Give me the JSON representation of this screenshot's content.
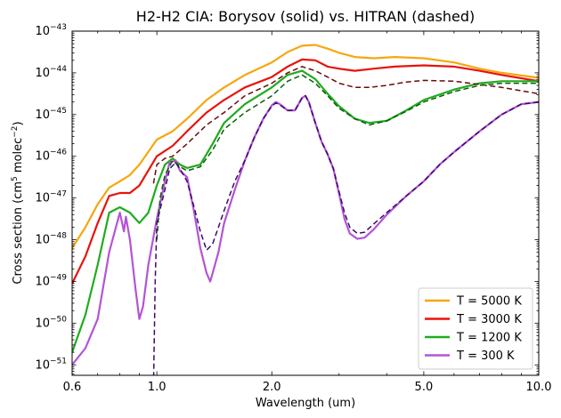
{
  "chart_data": {
    "type": "line",
    "title": "H2-H2 CIA:  Borysov (solid) vs. HITRAN (dashed)",
    "xlabel": "Wavelength (um)",
    "ylabel_main": "Cross section (cm",
    "ylabel_sup1": "5",
    "ylabel_mid": " molec",
    "ylabel_sup2": "−2",
    "ylabel_end": ")",
    "x_scale": "log",
    "y_scale": "log",
    "xlim": [
      0.6,
      10.0
    ],
    "ylim_exp": [
      -51.25,
      -43
    ],
    "x_ticks": [
      {
        "value": 0.6,
        "label": "0.6"
      },
      {
        "value": 1.0,
        "label": "1.0"
      },
      {
        "value": 2.0,
        "label": "2.0"
      },
      {
        "value": 5.0,
        "label": "5.0"
      },
      {
        "value": 10.0,
        "label": "10.0"
      }
    ],
    "y_ticks": [
      {
        "exp": -43,
        "base": "10",
        "sup": "−43"
      },
      {
        "exp": -44,
        "base": "10",
        "sup": "−44"
      },
      {
        "exp": -45,
        "base": "10",
        "sup": "−45"
      },
      {
        "exp": -46,
        "base": "10",
        "sup": "−46"
      },
      {
        "exp": -47,
        "base": "10",
        "sup": "−47"
      },
      {
        "exp": -48,
        "base": "10",
        "sup": "−48"
      },
      {
        "exp": -49,
        "base": "10",
        "sup": "−49"
      },
      {
        "exp": -50,
        "base": "10",
        "sup": "−50"
      },
      {
        "exp": -51,
        "base": "10",
        "sup": "−51"
      }
    ],
    "legend_position": "lower-right",
    "series": [
      {
        "name": "T = 5000 K",
        "color": "#f5a70f",
        "style": "solid",
        "legend": true,
        "points": [
          [
            0.6,
            -48.2
          ],
          [
            0.65,
            -47.7
          ],
          [
            0.7,
            -47.15
          ],
          [
            0.75,
            -46.75
          ],
          [
            0.8,
            -46.6
          ],
          [
            0.85,
            -46.45
          ],
          [
            0.9,
            -46.2
          ],
          [
            1.0,
            -45.6
          ],
          [
            1.1,
            -45.4
          ],
          [
            1.2,
            -45.1
          ],
          [
            1.35,
            -44.65
          ],
          [
            1.5,
            -44.35
          ],
          [
            1.7,
            -44.05
          ],
          [
            2.0,
            -43.75
          ],
          [
            2.2,
            -43.5
          ],
          [
            2.4,
            -43.35
          ],
          [
            2.6,
            -43.33
          ],
          [
            2.8,
            -43.42
          ],
          [
            3.0,
            -43.52
          ],
          [
            3.3,
            -43.62
          ],
          [
            3.7,
            -43.65
          ],
          [
            4.2,
            -43.62
          ],
          [
            5.0,
            -43.65
          ],
          [
            6.0,
            -43.75
          ],
          [
            7.0,
            -43.9
          ],
          [
            8.0,
            -44.0
          ],
          [
            10.0,
            -44.12
          ]
        ]
      },
      {
        "name": "T = 3000 K",
        "color": "#e8120c",
        "style": "solid",
        "legend": true,
        "points": [
          [
            0.6,
            -49.05
          ],
          [
            0.65,
            -48.4
          ],
          [
            0.7,
            -47.6
          ],
          [
            0.75,
            -46.95
          ],
          [
            0.8,
            -46.88
          ],
          [
            0.85,
            -46.88
          ],
          [
            0.9,
            -46.7
          ],
          [
            1.0,
            -46.0
          ],
          [
            1.1,
            -45.75
          ],
          [
            1.2,
            -45.4
          ],
          [
            1.35,
            -44.95
          ],
          [
            1.5,
            -44.65
          ],
          [
            1.7,
            -44.35
          ],
          [
            2.0,
            -44.1
          ],
          [
            2.2,
            -43.85
          ],
          [
            2.4,
            -43.68
          ],
          [
            2.6,
            -43.7
          ],
          [
            2.8,
            -43.85
          ],
          [
            3.0,
            -43.9
          ],
          [
            3.3,
            -43.95
          ],
          [
            3.7,
            -43.9
          ],
          [
            4.2,
            -43.85
          ],
          [
            5.0,
            -43.82
          ],
          [
            6.0,
            -43.85
          ],
          [
            7.0,
            -43.95
          ],
          [
            8.0,
            -44.05
          ],
          [
            10.0,
            -44.2
          ]
        ]
      },
      {
        "name": "T = 1200 K",
        "color": "#1eac1e",
        "style": "solid",
        "legend": true,
        "points": [
          [
            0.6,
            -50.7
          ],
          [
            0.65,
            -49.8
          ],
          [
            0.7,
            -48.6
          ],
          [
            0.75,
            -47.35
          ],
          [
            0.8,
            -47.22
          ],
          [
            0.85,
            -47.35
          ],
          [
            0.9,
            -47.6
          ],
          [
            0.95,
            -47.35
          ],
          [
            1.0,
            -46.7
          ],
          [
            1.05,
            -46.2
          ],
          [
            1.1,
            -46.05
          ],
          [
            1.15,
            -46.2
          ],
          [
            1.2,
            -46.28
          ],
          [
            1.3,
            -46.2
          ],
          [
            1.4,
            -45.7
          ],
          [
            1.5,
            -45.2
          ],
          [
            1.7,
            -44.75
          ],
          [
            2.0,
            -44.35
          ],
          [
            2.2,
            -44.05
          ],
          [
            2.4,
            -43.95
          ],
          [
            2.6,
            -44.15
          ],
          [
            2.8,
            -44.5
          ],
          [
            3.0,
            -44.8
          ],
          [
            3.3,
            -45.1
          ],
          [
            3.6,
            -45.2
          ],
          [
            4.0,
            -45.15
          ],
          [
            4.5,
            -44.9
          ],
          [
            5.0,
            -44.65
          ],
          [
            6.0,
            -44.4
          ],
          [
            7.0,
            -44.25
          ],
          [
            8.0,
            -44.2
          ],
          [
            10.0,
            -44.2
          ]
        ]
      },
      {
        "name": "T =  300 K",
        "color": "#b354d6",
        "style": "solid",
        "legend": true,
        "points": [
          [
            0.6,
            -51.0
          ],
          [
            0.65,
            -50.6
          ],
          [
            0.7,
            -49.9
          ],
          [
            0.75,
            -48.3
          ],
          [
            0.8,
            -47.35
          ],
          [
            0.82,
            -47.8
          ],
          [
            0.83,
            -47.45
          ],
          [
            0.85,
            -48.0
          ],
          [
            0.88,
            -49.2
          ],
          [
            0.9,
            -49.9
          ],
          [
            0.92,
            -49.6
          ],
          [
            0.95,
            -48.6
          ],
          [
            1.0,
            -47.5
          ],
          [
            1.05,
            -46.6
          ],
          [
            1.08,
            -46.15
          ],
          [
            1.12,
            -46.1
          ],
          [
            1.15,
            -46.35
          ],
          [
            1.2,
            -46.5
          ],
          [
            1.25,
            -47.3
          ],
          [
            1.3,
            -48.2
          ],
          [
            1.35,
            -48.8
          ],
          [
            1.38,
            -49.0
          ],
          [
            1.4,
            -48.8
          ],
          [
            1.45,
            -48.3
          ],
          [
            1.5,
            -47.6
          ],
          [
            1.6,
            -46.8
          ],
          [
            1.7,
            -46.1
          ],
          [
            1.8,
            -45.55
          ],
          [
            1.9,
            -45.1
          ],
          [
            2.0,
            -44.78
          ],
          [
            2.05,
            -44.7
          ],
          [
            2.1,
            -44.75
          ],
          [
            2.2,
            -44.9
          ],
          [
            2.3,
            -44.9
          ],
          [
            2.4,
            -44.6
          ],
          [
            2.45,
            -44.55
          ],
          [
            2.5,
            -44.7
          ],
          [
            2.6,
            -45.2
          ],
          [
            2.7,
            -45.65
          ],
          [
            2.8,
            -45.95
          ],
          [
            2.9,
            -46.3
          ],
          [
            3.0,
            -46.9
          ],
          [
            3.1,
            -47.5
          ],
          [
            3.2,
            -47.85
          ],
          [
            3.35,
            -47.98
          ],
          [
            3.5,
            -47.95
          ],
          [
            3.7,
            -47.75
          ],
          [
            4.0,
            -47.4
          ],
          [
            4.5,
            -46.95
          ],
          [
            5.0,
            -46.6
          ],
          [
            5.5,
            -46.2
          ],
          [
            6.0,
            -45.9
          ],
          [
            7.0,
            -45.4
          ],
          [
            8.0,
            -45.0
          ],
          [
            9.0,
            -44.75
          ],
          [
            10.0,
            -44.7
          ]
        ]
      },
      {
        "color": "#6b0a0a",
        "style": "dashed",
        "legend": false,
        "points": [
          [
            0.98,
            -46.65
          ],
          [
            1.0,
            -46.2
          ],
          [
            1.05,
            -46.05
          ],
          [
            1.1,
            -46.0
          ],
          [
            1.2,
            -45.7
          ],
          [
            1.35,
            -45.25
          ],
          [
            1.5,
            -44.95
          ],
          [
            1.7,
            -44.55
          ],
          [
            2.0,
            -44.25
          ],
          [
            2.2,
            -44.0
          ],
          [
            2.4,
            -43.85
          ],
          [
            2.6,
            -43.95
          ],
          [
            2.8,
            -44.1
          ],
          [
            3.0,
            -44.25
          ],
          [
            3.3,
            -44.35
          ],
          [
            3.6,
            -44.35
          ],
          [
            4.0,
            -44.3
          ],
          [
            4.5,
            -44.22
          ],
          [
            5.0,
            -44.18
          ],
          [
            6.0,
            -44.2
          ],
          [
            7.0,
            -44.28
          ],
          [
            8.0,
            -44.35
          ],
          [
            10.0,
            -44.5
          ]
        ]
      },
      {
        "color": "#0c5c0c",
        "style": "dashed",
        "legend": false,
        "points": [
          [
            1.0,
            -48.0
          ],
          [
            1.02,
            -47.0
          ],
          [
            1.05,
            -46.45
          ],
          [
            1.1,
            -46.1
          ],
          [
            1.15,
            -46.25
          ],
          [
            1.2,
            -46.35
          ],
          [
            1.3,
            -46.25
          ],
          [
            1.4,
            -45.85
          ],
          [
            1.5,
            -45.35
          ],
          [
            1.7,
            -44.95
          ],
          [
            2.0,
            -44.55
          ],
          [
            2.2,
            -44.2
          ],
          [
            2.4,
            -44.05
          ],
          [
            2.6,
            -44.25
          ],
          [
            2.8,
            -44.55
          ],
          [
            3.0,
            -44.85
          ],
          [
            3.3,
            -45.1
          ],
          [
            3.6,
            -45.25
          ],
          [
            4.0,
            -45.15
          ],
          [
            4.5,
            -44.92
          ],
          [
            5.0,
            -44.7
          ],
          [
            6.0,
            -44.45
          ],
          [
            7.0,
            -44.3
          ],
          [
            8.0,
            -44.25
          ],
          [
            10.0,
            -44.25
          ]
        ]
      },
      {
        "color": "#3d0b66",
        "style": "dashed",
        "legend": false,
        "points": [
          [
            0.98,
            -51.5
          ],
          [
            0.99,
            -49.0
          ],
          [
            1.0,
            -47.6
          ],
          [
            1.05,
            -46.8
          ],
          [
            1.08,
            -46.3
          ],
          [
            1.12,
            -46.15
          ],
          [
            1.15,
            -46.3
          ],
          [
            1.2,
            -46.6
          ],
          [
            1.25,
            -47.2
          ],
          [
            1.3,
            -47.8
          ],
          [
            1.35,
            -48.25
          ],
          [
            1.4,
            -48.1
          ],
          [
            1.45,
            -47.7
          ],
          [
            1.5,
            -47.3
          ],
          [
            1.6,
            -46.6
          ],
          [
            1.7,
            -46.1
          ],
          [
            1.8,
            -45.55
          ],
          [
            1.9,
            -45.1
          ],
          [
            2.0,
            -44.8
          ],
          [
            2.05,
            -44.72
          ],
          [
            2.1,
            -44.77
          ],
          [
            2.2,
            -44.9
          ],
          [
            2.3,
            -44.9
          ],
          [
            2.4,
            -44.6
          ],
          [
            2.45,
            -44.55
          ],
          [
            2.5,
            -44.7
          ],
          [
            2.6,
            -45.2
          ],
          [
            2.7,
            -45.65
          ],
          [
            2.8,
            -45.95
          ],
          [
            2.9,
            -46.3
          ],
          [
            3.0,
            -46.85
          ],
          [
            3.1,
            -47.35
          ],
          [
            3.2,
            -47.7
          ],
          [
            3.35,
            -47.85
          ],
          [
            3.5,
            -47.82
          ],
          [
            3.7,
            -47.62
          ],
          [
            4.0,
            -47.35
          ],
          [
            4.5,
            -46.95
          ],
          [
            5.0,
            -46.6
          ],
          [
            5.5,
            -46.2
          ],
          [
            6.0,
            -45.9
          ],
          [
            7.0,
            -45.4
          ],
          [
            8.0,
            -45.0
          ],
          [
            9.0,
            -44.75
          ],
          [
            10.0,
            -44.7
          ]
        ]
      }
    ]
  }
}
